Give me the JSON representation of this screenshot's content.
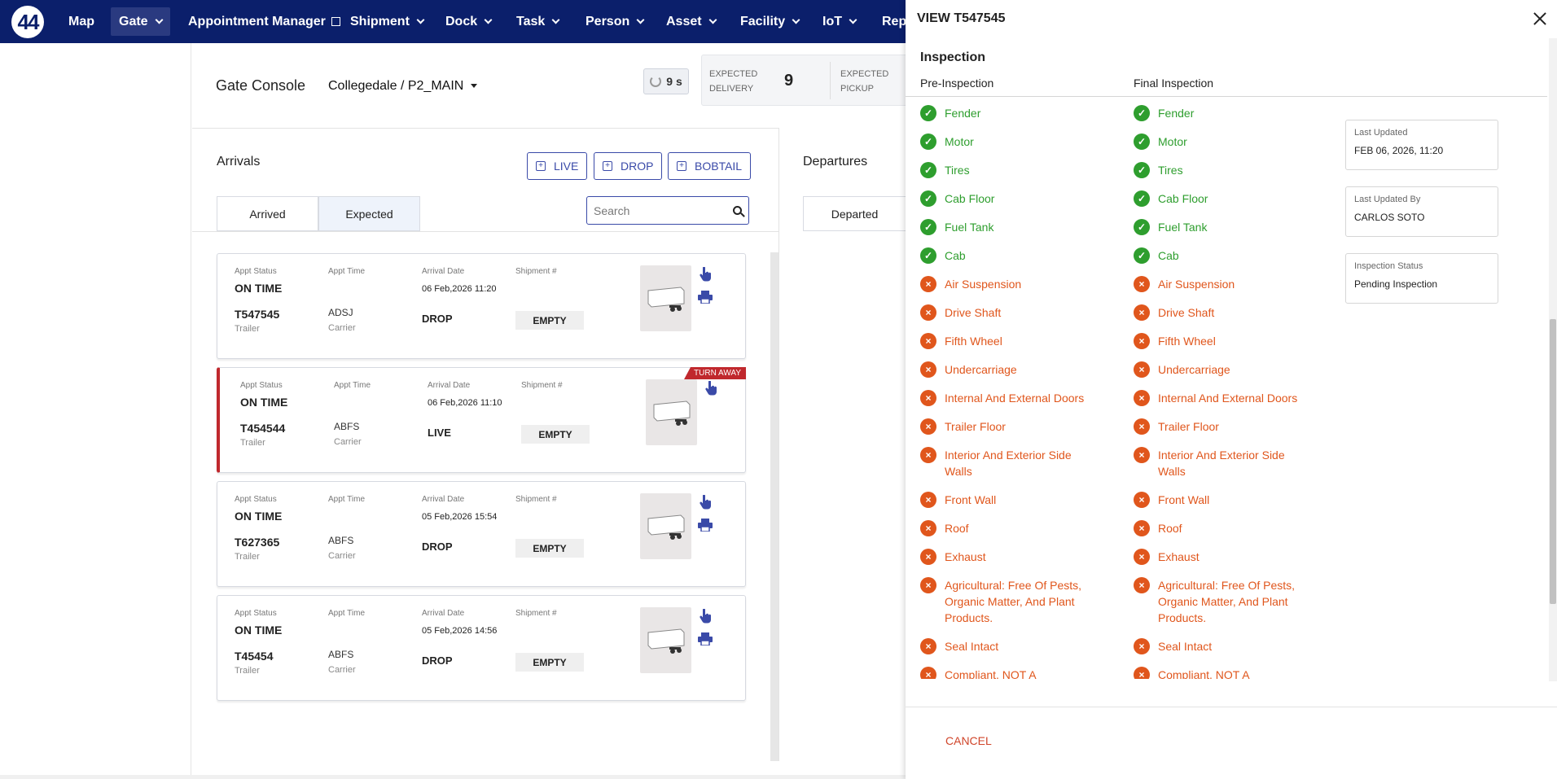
{
  "nav": {
    "logo": "44",
    "items": [
      "Map",
      "Gate",
      "Appointment Manager",
      "Shipment",
      "Dock",
      "Task",
      "Person",
      "Asset",
      "Facility",
      "IoT",
      "Repo"
    ]
  },
  "console": {
    "title": "Gate Console",
    "location": "Collegedale / P2_MAIN",
    "refresh": "9 s",
    "expected_delivery_label1": "EXPECTED",
    "expected_delivery_label2": "DELIVERY",
    "expected_delivery_count": "9",
    "expected_pickup_label1": "EXPECTED",
    "expected_pickup_label2": "PICKUP"
  },
  "arrivals": {
    "title": "Arrivals",
    "buttons": [
      "LIVE",
      "DROP",
      "BOBTAIL"
    ],
    "tabs": [
      "Arrived",
      "Expected"
    ],
    "search_placeholder": "Search",
    "labels": {
      "appt_status": "Appt Status",
      "appt_time": "Appt Time",
      "arrival_date": "Arrival Date",
      "shipment": "Shipment #",
      "trailer": "Trailer",
      "carrier": "Carrier"
    },
    "cards": [
      {
        "status": "ON TIME",
        "date": "06 Feb,2026 11:20",
        "trailer": "T547545",
        "carrier": "ADSJ",
        "type": "DROP",
        "shipment": "EMPTY",
        "ribbon": ""
      },
      {
        "status": "ON TIME",
        "date": "06 Feb,2026 11:10",
        "trailer": "T454544",
        "carrier": "ABFS",
        "type": "LIVE",
        "shipment": "EMPTY",
        "ribbon": "TURN AWAY"
      },
      {
        "status": "ON TIME",
        "date": "05 Feb,2026 15:54",
        "trailer": "T627365",
        "carrier": "ABFS",
        "type": "DROP",
        "shipment": "EMPTY",
        "ribbon": ""
      },
      {
        "status": "ON TIME",
        "date": "05 Feb,2026 14:56",
        "trailer": "T45454",
        "carrier": "ABFS",
        "type": "DROP",
        "shipment": "EMPTY",
        "ribbon": ""
      }
    ]
  },
  "departures": {
    "title": "Departures",
    "tab": "Departed"
  },
  "modal": {
    "title": "VIEW T547545",
    "section": "Inspection",
    "pre_label": "Pre-Inspection",
    "final_label": "Final Inspection",
    "items": [
      {
        "label": "Fender",
        "status": "ok"
      },
      {
        "label": "Motor",
        "status": "ok"
      },
      {
        "label": "Tires",
        "status": "ok"
      },
      {
        "label": "Cab Floor",
        "status": "ok"
      },
      {
        "label": "Fuel Tank",
        "status": "ok"
      },
      {
        "label": "Cab",
        "status": "ok"
      },
      {
        "label": "Air Suspension",
        "status": "bad"
      },
      {
        "label": "Drive Shaft",
        "status": "bad"
      },
      {
        "label": "Fifth Wheel",
        "status": "bad"
      },
      {
        "label": "Undercarriage",
        "status": "bad"
      },
      {
        "label": "Internal And External Doors",
        "status": "bad"
      },
      {
        "label": "Trailer Floor",
        "status": "bad"
      },
      {
        "label": "Interior And Exterior Side Walls",
        "status": "bad"
      },
      {
        "label": "Front Wall",
        "status": "bad"
      },
      {
        "label": "Roof",
        "status": "bad"
      },
      {
        "label": "Exhaust",
        "status": "bad"
      },
      {
        "label": "Agricultural: Free Of Pests, Organic Matter, And Plant Products.",
        "status": "bad"
      },
      {
        "label": "Seal Intact",
        "status": "bad"
      },
      {
        "label": "Compliant, NOT A",
        "status": "bad"
      }
    ],
    "last_updated_label": "Last Updated",
    "last_updated_value": "FEB 06, 2026, 11:20",
    "last_updated_by_label": "Last Updated By",
    "last_updated_by_value": "CARLOS SOTO",
    "inspection_status_label": "Inspection Status",
    "inspection_status_value": "Pending Inspection",
    "cancel": "CANCEL"
  },
  "colors": {
    "nav": "#0b1f6b",
    "accent": "#3a4aa8",
    "ok": "#2e9e2e",
    "bad": "#e0561c",
    "turnaway": "#c0282d"
  }
}
